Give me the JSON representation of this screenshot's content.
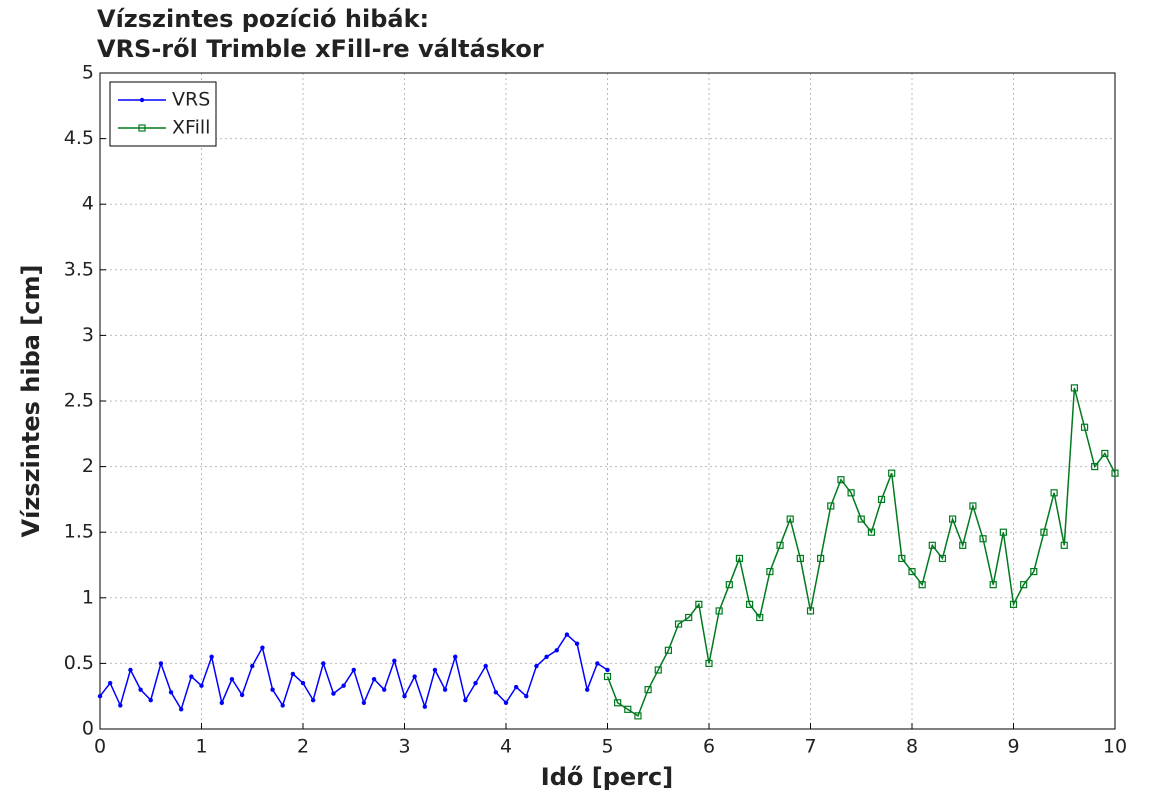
{
  "chart_data": {
    "type": "line",
    "title": [
      "Vízszintes pozíció hibák:",
      "VRS-ről Trimble xFill-re váltáskor"
    ],
    "x_label": "Idő [perc]",
    "y_label": "Vízszintes hiba [cm]",
    "xlim": [
      0,
      10
    ],
    "xticks": [
      0,
      1,
      2,
      3,
      4,
      5,
      6,
      7,
      8,
      9,
      10
    ],
    "ylim": [
      0,
      5
    ],
    "yticks": [
      0,
      0.5,
      1,
      1.5,
      2,
      2.5,
      3,
      3.5,
      4,
      4.5,
      5
    ],
    "grid": true,
    "legend": "top-left",
    "series": [
      {
        "name": "VRS",
        "color": "#0000ff",
        "marker": "dot",
        "x": [
          0,
          0.1,
          0.2,
          0.3,
          0.4,
          0.5,
          0.6,
          0.7,
          0.8,
          0.9,
          1,
          1.1,
          1.2,
          1.3,
          1.4,
          1.5,
          1.6,
          1.7,
          1.8,
          1.9,
          2,
          2.1,
          2.2,
          2.3,
          2.4,
          2.5,
          2.6,
          2.7,
          2.8,
          2.9,
          3,
          3.1,
          3.2,
          3.3,
          3.4,
          3.5,
          3.6,
          3.7,
          3.8,
          3.9,
          4,
          4.1,
          4.2,
          4.3,
          4.4,
          4.5,
          4.6,
          4.7,
          4.8,
          4.9,
          5
        ],
        "values": [
          0.25,
          0.35,
          0.18,
          0.45,
          0.3,
          0.22,
          0.5,
          0.28,
          0.15,
          0.4,
          0.33,
          0.55,
          0.2,
          0.38,
          0.26,
          0.48,
          0.62,
          0.3,
          0.18,
          0.42,
          0.35,
          0.22,
          0.5,
          0.27,
          0.33,
          0.45,
          0.2,
          0.38,
          0.3,
          0.52,
          0.25,
          0.4,
          0.17,
          0.45,
          0.3,
          0.55,
          0.22,
          0.35,
          0.48,
          0.28,
          0.2,
          0.32,
          0.25,
          0.48,
          0.55,
          0.6,
          0.72,
          0.65,
          0.3,
          0.5,
          0.45
        ]
      },
      {
        "name": "XFill",
        "color": "#007a1e",
        "marker": "square",
        "x": [
          5,
          5.1,
          5.2,
          5.3,
          5.4,
          5.5,
          5.6,
          5.7,
          5.8,
          5.9,
          6,
          6.1,
          6.2,
          6.3,
          6.4,
          6.5,
          6.6,
          6.7,
          6.8,
          6.9,
          7,
          7.1,
          7.2,
          7.3,
          7.4,
          7.5,
          7.6,
          7.7,
          7.8,
          7.9,
          8,
          8.1,
          8.2,
          8.3,
          8.4,
          8.5,
          8.6,
          8.7,
          8.8,
          8.9,
          9,
          9.1,
          9.2,
          9.3,
          9.4,
          9.5,
          9.6,
          9.7,
          9.8,
          9.9,
          10
        ],
        "values": [
          0.4,
          0.2,
          0.15,
          0.1,
          0.3,
          0.45,
          0.6,
          0.8,
          0.85,
          0.95,
          0.5,
          0.9,
          1.1,
          1.3,
          0.95,
          0.85,
          1.2,
          1.4,
          1.6,
          1.3,
          0.9,
          1.3,
          1.7,
          1.9,
          1.8,
          1.6,
          1.5,
          1.75,
          1.95,
          1.3,
          1.2,
          1.1,
          1.4,
          1.3,
          1.6,
          1.4,
          1.7,
          1.45,
          1.1,
          1.5,
          0.95,
          1.1,
          1.2,
          1.5,
          1.8,
          1.4,
          2.6,
          2.3,
          2,
          2.1,
          1.95
        ]
      }
    ]
  }
}
